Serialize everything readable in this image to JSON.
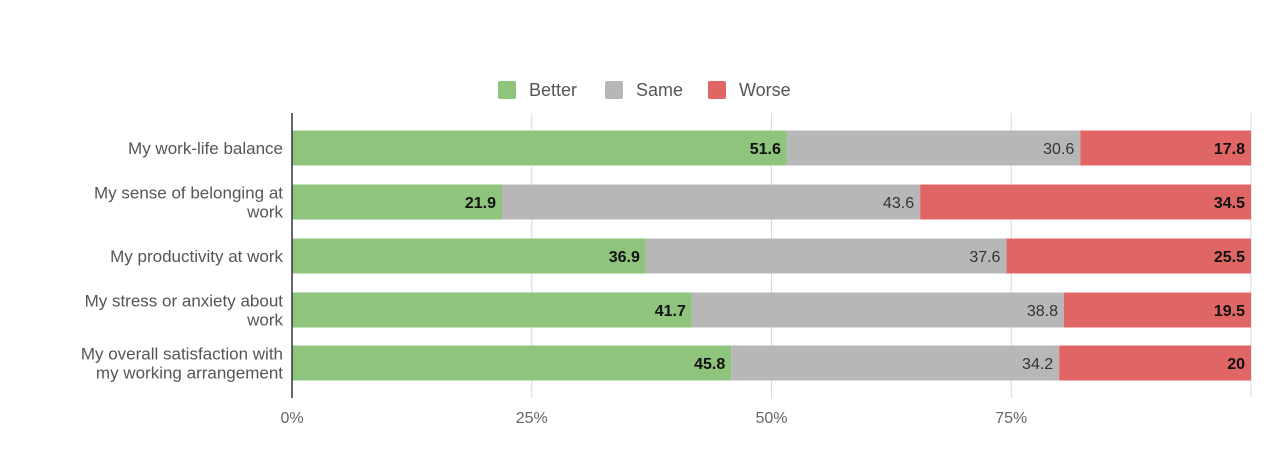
{
  "chart_data": {
    "type": "bar",
    "orientation": "horizontal",
    "stacked": true,
    "title": "",
    "xlabel": "",
    "ylabel": "",
    "xlim": [
      0,
      100
    ],
    "ticks": [
      "0%",
      "25%",
      "50%",
      "75%"
    ],
    "tick_values": [
      0,
      25,
      50,
      75
    ],
    "grid": true,
    "legend_position": "top",
    "categories": [
      [
        "My work-life balance"
      ],
      [
        "My sense of belonging at",
        "work"
      ],
      [
        "My productivity at work"
      ],
      [
        "My stress or anxiety about",
        "work"
      ],
      [
        "My overall satisfaction with",
        "my working arrangement"
      ]
    ],
    "series": [
      {
        "name": "Better",
        "color": "#8fc47d",
        "label_weight": "bold",
        "values": [
          51.6,
          21.9,
          36.9,
          41.7,
          45.8
        ]
      },
      {
        "name": "Same",
        "color": "#b7b7b7",
        "label_weight": "normal",
        "values": [
          30.6,
          43.6,
          37.6,
          38.8,
          34.2
        ]
      },
      {
        "name": "Worse",
        "color": "#e06666",
        "label_weight": "bold",
        "values": [
          17.8,
          34.5,
          25.5,
          19.5,
          20
        ]
      }
    ]
  }
}
